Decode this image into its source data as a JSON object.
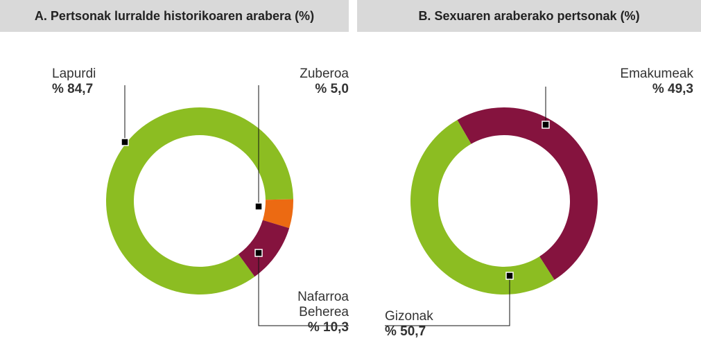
{
  "chart_data": [
    {
      "type": "donut",
      "title": "A. Pertsonak lurralde historikoaren arabera (%)",
      "categories": [
        "Lapurdi",
        "Zuberoa",
        "Nafarroa Beherea"
      ],
      "values": [
        84.7,
        5.0,
        10.3
      ],
      "value_labels": [
        "% 84,7",
        "% 5,0",
        "% 10,3"
      ],
      "colors": [
        "#8cbd22",
        "#ec6a12",
        "#85133e"
      ]
    },
    {
      "type": "donut",
      "title": "B. Sexuaren araberako pertsonak (%)",
      "categories": [
        "Emakumeak",
        "Gizonak"
      ],
      "values": [
        49.3,
        50.7
      ],
      "value_labels": [
        "% 49,3",
        "% 50,7"
      ],
      "colors": [
        "#85133e",
        "#8cbd22"
      ]
    }
  ]
}
